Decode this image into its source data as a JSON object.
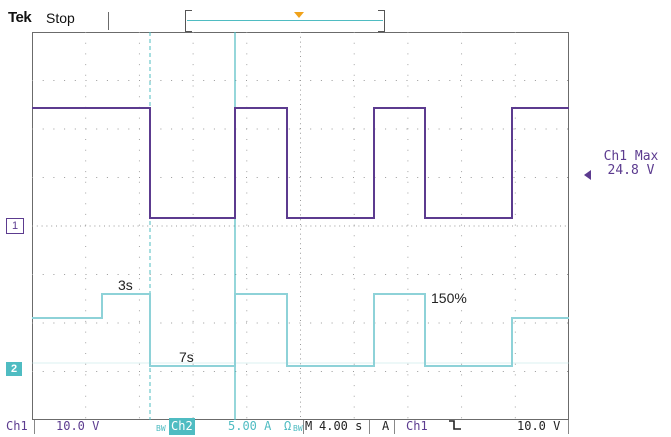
{
  "header": {
    "brand": "Tek",
    "state": "Stop"
  },
  "channel1": {
    "marker": "1",
    "max_label_line1": "Ch1 Max",
    "max_label_line2": "24.8 V",
    "color": "#5c3b8f"
  },
  "channel2": {
    "marker": "2",
    "color": "#4fbcc2"
  },
  "annotations": {
    "t1": "3s",
    "t2": "7s",
    "pct": "150%"
  },
  "status": {
    "ch1": "Ch1",
    "ch1_scale": "10.0 V",
    "bw1": "BW",
    "ch2": "Ch2",
    "ch2_scale": "5.00 A",
    "omega": "Ω",
    "bw2": "BW",
    "m": "M",
    "timebase": "4.00 s",
    "a": "A",
    "trig_source": "Ch1",
    "trig_slope_icon": "falling-edge-icon",
    "trig_level": "10.0 V"
  },
  "colors": {
    "grid": "#9a9a9a",
    "cursor": "#4fbcc2",
    "trigger": "#f0a21a"
  }
}
